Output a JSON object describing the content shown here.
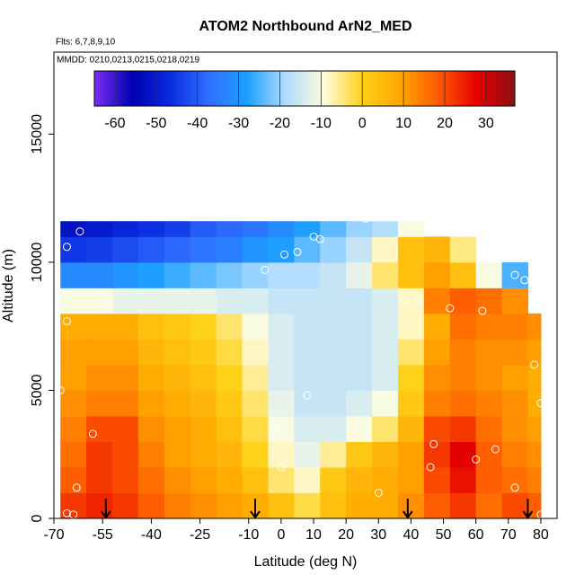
{
  "chart_data": {
    "type": "heatmap",
    "title": "ATOM2 Northbound ArN2_MED",
    "subtitle": "Flts: 6,7,8,9,10",
    "annotation": "MMDD: 0210,0213,0215,0218,0219",
    "x_label": "Latitude (deg N)",
    "y_label": "Altitude (m)",
    "xlim": [
      -70,
      85
    ],
    "ylim": [
      0,
      18200
    ],
    "xticks": [
      -70,
      -55,
      -40,
      -25,
      -10,
      0,
      10,
      20,
      30,
      40,
      50,
      60,
      70,
      80
    ],
    "yticks": [
      0,
      5000,
      10000,
      15000
    ],
    "x_edges": [
      -68,
      -60,
      -52,
      -44,
      -36,
      -28,
      -20,
      -12,
      -4,
      4,
      12,
      20,
      28,
      36,
      44,
      52,
      60,
      68,
      76,
      80
    ],
    "y_edges": [
      0,
      1000,
      2000,
      3000,
      4000,
      5000,
      6000,
      7000,
      8000,
      9000,
      10000,
      11000,
      11600
    ],
    "values": [
      [
        22,
        24,
        22,
        18,
        14,
        12,
        10,
        8,
        4,
        -2,
        4,
        8,
        8,
        12,
        18,
        22,
        16,
        20,
        18
      ],
      [
        18,
        22,
        20,
        16,
        12,
        10,
        8,
        4,
        -4,
        -8,
        2,
        6,
        8,
        10,
        20,
        26,
        18,
        16,
        14
      ],
      [
        16,
        22,
        20,
        14,
        10,
        8,
        6,
        0,
        -8,
        -12,
        -6,
        2,
        6,
        10,
        22,
        28,
        18,
        14,
        12
      ],
      [
        14,
        20,
        20,
        12,
        10,
        8,
        4,
        -2,
        -10,
        -14,
        -14,
        -10,
        -4,
        6,
        20,
        22,
        16,
        12,
        10
      ],
      [
        12,
        14,
        14,
        10,
        8,
        6,
        2,
        -4,
        -12,
        -16,
        -16,
        -14,
        -10,
        2,
        14,
        16,
        14,
        12,
        8
      ],
      [
        10,
        12,
        12,
        8,
        6,
        4,
        0,
        -6,
        -14,
        -16,
        -16,
        -16,
        -14,
        0,
        12,
        14,
        12,
        10,
        8
      ],
      [
        10,
        10,
        10,
        6,
        4,
        2,
        -2,
        -8,
        -14,
        -16,
        -16,
        -16,
        -14,
        -4,
        10,
        14,
        12,
        12,
        10
      ],
      [
        8,
        8,
        8,
        4,
        2,
        0,
        -4,
        -10,
        -14,
        -16,
        -16,
        -16,
        -14,
        -8,
        8,
        16,
        14,
        14,
        12
      ],
      [
        -10,
        -10,
        -12,
        -12,
        -12,
        -12,
        -14,
        -14,
        -16,
        -16,
        -16,
        -16,
        -14,
        -8,
        14,
        18,
        16,
        12,
        null
      ],
      [
        -32,
        -32,
        -30,
        -28,
        -26,
        -24,
        -22,
        -20,
        -18,
        -18,
        -16,
        -12,
        -4,
        4,
        10,
        4,
        -10,
        -25,
        null
      ],
      [
        -45,
        -44,
        -42,
        -40,
        -38,
        -36,
        -34,
        -30,
        -28,
        -24,
        -20,
        -16,
        -8,
        4,
        6,
        -5,
        null,
        null,
        null
      ],
      [
        -52,
        -50,
        -48,
        -46,
        -44,
        -40,
        -38,
        -36,
        -32,
        -28,
        -24,
        -20,
        -18,
        -10,
        null,
        null,
        null,
        null,
        null
      ]
    ],
    "colorbar": {
      "lim": [
        -65,
        37
      ],
      "ticks": [
        -60,
        -50,
        -40,
        -30,
        -20,
        -10,
        0,
        10,
        20,
        30
      ],
      "colormap": [
        "#7b2ff0",
        "#0000b0",
        "#0a2ce0",
        "#2f6fff",
        "#1e9fff",
        "#aedcff",
        "#fffde0",
        "#ffd21a",
        "#ffa600",
        "#ff5a00",
        "#e60000",
        "#8b1010"
      ]
    },
    "points": {
      "x": [
        -62,
        -66,
        -66,
        -68,
        -58,
        -63,
        -66,
        -64,
        -5,
        1,
        5,
        10,
        12,
        26,
        38,
        42,
        52,
        62,
        72,
        75,
        78,
        80,
        47,
        46,
        30,
        60,
        66,
        72,
        80,
        0,
        -2,
        8
      ],
      "y": [
        11200,
        10600,
        7700,
        5000,
        3300,
        1200,
        200,
        150,
        9700,
        10300,
        10400,
        11000,
        10900,
        11700,
        8500,
        8500,
        8200,
        8100,
        9500,
        9300,
        6000,
        4500,
        2900,
        2000,
        1000,
        2300,
        2700,
        1200,
        150,
        2000,
        3500,
        4800
      ]
    },
    "arrows": [
      -54,
      -8,
      39,
      76
    ]
  }
}
